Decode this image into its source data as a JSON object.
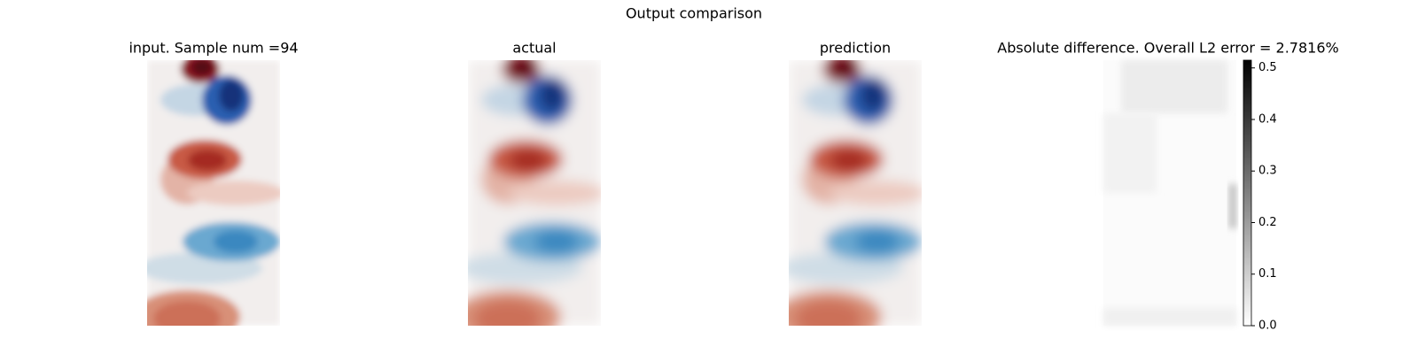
{
  "title": "Output comparison",
  "chart_data": [
    {
      "type": "image",
      "title": "input. Sample num =94"
    },
    {
      "type": "image",
      "title": "actual"
    },
    {
      "type": "image",
      "title": "prediction"
    },
    {
      "type": "image",
      "title": "Absolute difference. Overall L2 error = 2.7816%",
      "colorbar": {
        "ylim": [
          0,
          0.515
        ],
        "yticks": [
          {
            "value": 0,
            "label": "0.0"
          },
          {
            "value": 0.1,
            "label": "0.1"
          },
          {
            "value": 0.2,
            "label": "0.2"
          },
          {
            "value": 0.3,
            "label": "0.3"
          },
          {
            "value": 0.4,
            "label": "0.4"
          },
          {
            "value": 0.5,
            "label": "0.5"
          }
        ]
      }
    }
  ]
}
